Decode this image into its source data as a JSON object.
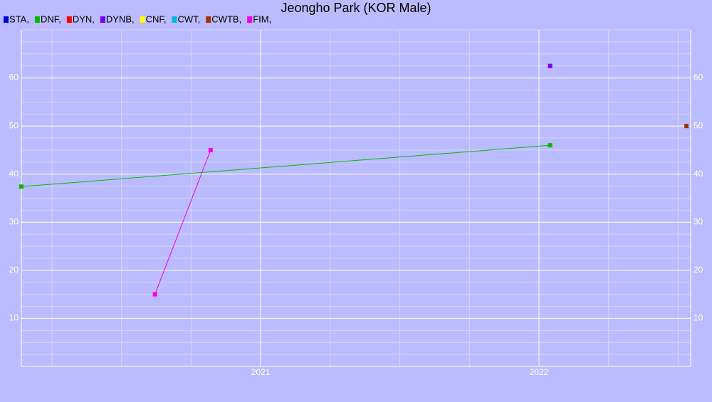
{
  "chart_data": {
    "type": "line",
    "title": "Jeongho Park (KOR Male)",
    "series": [
      {
        "name": "STA,",
        "color": "#0000dd",
        "x": [],
        "values": []
      },
      {
        "name": "DNF,",
        "color": "#00bb00",
        "x": [
          2020.14,
          2022.04
        ],
        "values": [
          37.4,
          46
        ]
      },
      {
        "name": "DYN,",
        "color": "#ff0000",
        "x": [],
        "values": []
      },
      {
        "name": "DYNB,",
        "color": "#7700ee",
        "x": [
          2022.04
        ],
        "values": [
          62.5
        ]
      },
      {
        "name": "CNF,",
        "color": "#ffff00",
        "x": [],
        "values": []
      },
      {
        "name": "CWT,",
        "color": "#00bbdd",
        "x": [],
        "values": []
      },
      {
        "name": "CWTB,",
        "color": "#993300",
        "x": [
          2022.53
        ],
        "values": [
          50
        ]
      },
      {
        "name": "FIM,",
        "color": "#ee00ee",
        "x": [
          2020.62,
          2020.82
        ],
        "values": [
          15,
          45
        ]
      }
    ],
    "xlim": [
      2020.14,
      2022.545
    ],
    "xticks": [
      2021,
      2022
    ],
    "ylim": [
      0,
      70
    ],
    "yticks": [
      10,
      20,
      30,
      40,
      50,
      60
    ],
    "grid": true,
    "minor_grid": 4
  }
}
